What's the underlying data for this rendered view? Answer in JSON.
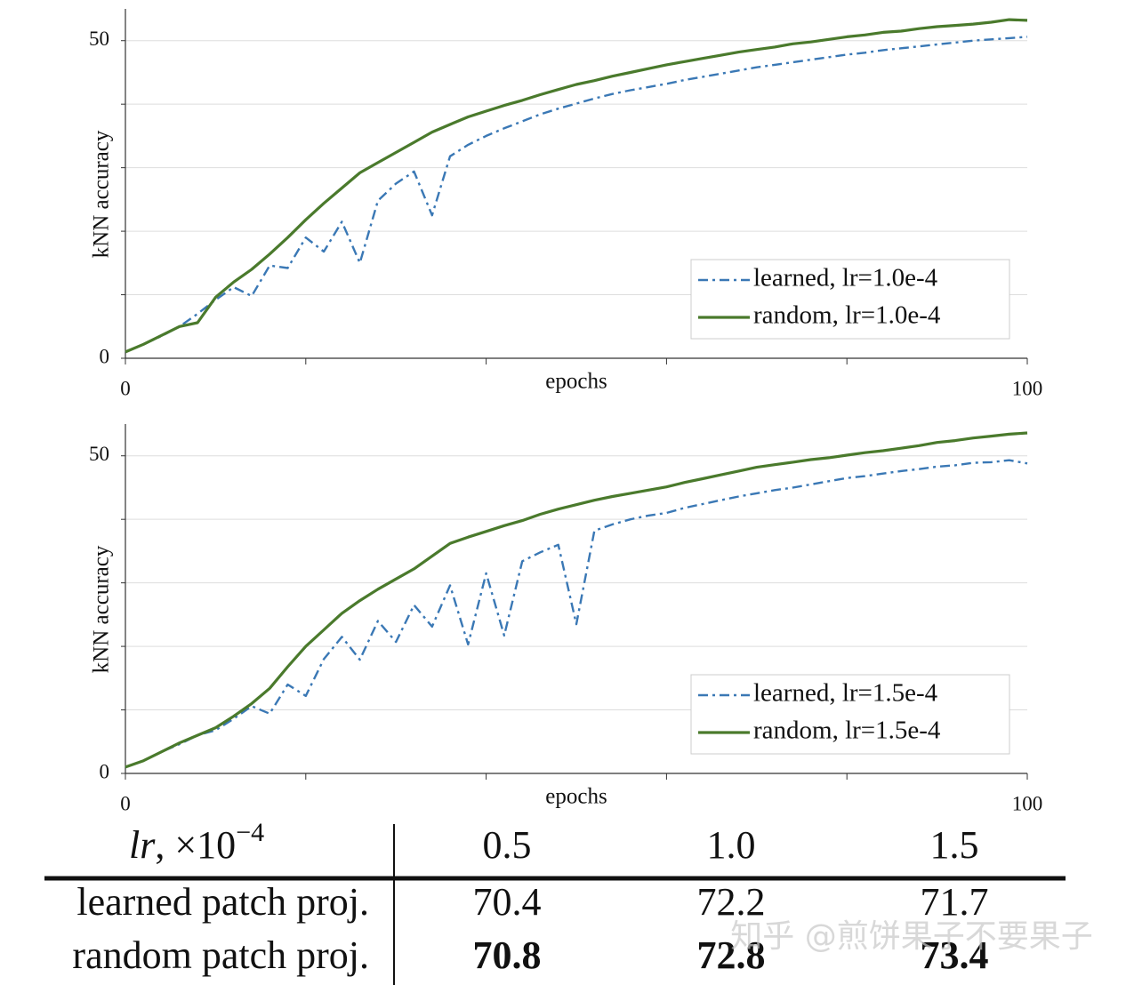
{
  "chart_data": [
    {
      "type": "line",
      "x_label": "epochs",
      "y_label": "kNN accuracy",
      "x": [
        0,
        2,
        4,
        6,
        8,
        10,
        12,
        14,
        16,
        18,
        20,
        22,
        24,
        26,
        28,
        30,
        32,
        34,
        36,
        38,
        40,
        42,
        44,
        46,
        48,
        50,
        52,
        54,
        56,
        58,
        60,
        62,
        64,
        66,
        68,
        70,
        72,
        74,
        76,
        78,
        80,
        82,
        84,
        86,
        88,
        90,
        92,
        94,
        96,
        98,
        100
      ],
      "xlim": [
        0,
        100
      ],
      "xticks": [
        0,
        100
      ],
      "minor_xticks": [
        20,
        40,
        60,
        80
      ],
      "ylim": [
        0,
        55
      ],
      "yticks": [
        0,
        50
      ],
      "minor_yticks": [
        10,
        20,
        30,
        40
      ],
      "grid": true,
      "legend": "lower right",
      "series": [
        {
          "name": "learned, lr=1.0e-4",
          "color": "#3a78b5",
          "style": "dashdot",
          "values": [
            1.0,
            2.2,
            3.5,
            5.0,
            7.0,
            9.2,
            11.2,
            9.8,
            14.6,
            14.2,
            19.0,
            16.8,
            21.5,
            15.0,
            24.8,
            27.5,
            29.4,
            22.5,
            31.8,
            33.6,
            35.0,
            36.2,
            37.3,
            38.4,
            39.3,
            40.1,
            40.9,
            41.6,
            42.2,
            42.7,
            43.2,
            43.8,
            44.3,
            44.8,
            45.3,
            45.8,
            46.2,
            46.6,
            47.0,
            47.4,
            47.8,
            48.1,
            48.5,
            48.8,
            49.1,
            49.4,
            49.7,
            50.0,
            50.2,
            50.4,
            50.6
          ]
        },
        {
          "name": "random, lr=1.0e-4",
          "color": "#4a7a2c",
          "style": "solid",
          "values": [
            1.0,
            2.2,
            3.6,
            5.0,
            5.6,
            9.6,
            12.0,
            14.0,
            16.4,
            19.0,
            21.8,
            24.4,
            26.8,
            29.2,
            30.8,
            32.4,
            34.0,
            35.6,
            36.8,
            38.0,
            38.9,
            39.8,
            40.6,
            41.5,
            42.3,
            43.1,
            43.7,
            44.4,
            45.0,
            45.6,
            46.2,
            46.7,
            47.2,
            47.7,
            48.2,
            48.6,
            49.0,
            49.5,
            49.8,
            50.2,
            50.6,
            50.9,
            51.3,
            51.5,
            51.9,
            52.2,
            52.4,
            52.6,
            52.9,
            53.3,
            53.2
          ]
        }
      ]
    },
    {
      "type": "line",
      "x_label": "epochs",
      "y_label": "kNN accuracy",
      "x": [
        0,
        2,
        4,
        6,
        8,
        10,
        12,
        14,
        16,
        18,
        20,
        22,
        24,
        26,
        28,
        30,
        32,
        34,
        36,
        38,
        40,
        42,
        44,
        46,
        48,
        50,
        52,
        54,
        56,
        58,
        60,
        62,
        64,
        66,
        68,
        70,
        72,
        74,
        76,
        78,
        80,
        82,
        84,
        86,
        88,
        90,
        92,
        94,
        96,
        98,
        100
      ],
      "xlim": [
        0,
        100
      ],
      "xticks": [
        0,
        100
      ],
      "minor_xticks": [
        20,
        40,
        60,
        80
      ],
      "ylim": [
        0,
        55
      ],
      "yticks": [
        0,
        50
      ],
      "minor_yticks": [
        10,
        20,
        30,
        40
      ],
      "grid": true,
      "legend": "lower right",
      "series": [
        {
          "name": "learned, lr=1.5e-4",
          "color": "#3a78b5",
          "style": "dashdot",
          "values": [
            1.0,
            2.0,
            3.4,
            4.6,
            6.0,
            6.8,
            8.6,
            10.6,
            9.4,
            14.0,
            12.2,
            18.0,
            21.5,
            17.9,
            24.0,
            20.7,
            26.5,
            23.1,
            29.6,
            20.3,
            31.5,
            21.7,
            33.4,
            34.8,
            36.0,
            23.5,
            38.2,
            39.2,
            40.0,
            40.6,
            41.0,
            41.8,
            42.4,
            43.0,
            43.6,
            44.1,
            44.6,
            45.0,
            45.5,
            46.0,
            46.5,
            46.8,
            47.2,
            47.6,
            47.9,
            48.3,
            48.5,
            48.9,
            49.0,
            49.3,
            48.8
          ]
        },
        {
          "name": "random, lr=1.5e-4",
          "color": "#4a7a2c",
          "style": "solid",
          "values": [
            1.0,
            2.0,
            3.4,
            4.8,
            6.0,
            7.2,
            9.0,
            11.0,
            13.4,
            16.8,
            20.0,
            22.6,
            25.2,
            27.2,
            29.0,
            30.6,
            32.2,
            34.2,
            36.2,
            37.2,
            38.1,
            39.0,
            39.8,
            40.8,
            41.6,
            42.3,
            43.0,
            43.6,
            44.1,
            44.6,
            45.1,
            45.8,
            46.4,
            47.0,
            47.6,
            48.2,
            48.6,
            49.0,
            49.4,
            49.7,
            50.1,
            50.5,
            50.8,
            51.2,
            51.6,
            52.1,
            52.4,
            52.8,
            53.1,
            53.4,
            53.6
          ]
        }
      ]
    }
  ],
  "table": {
    "header_label": {
      "var": "lr",
      "text": ", ×10",
      "exp": "−4"
    },
    "columns": [
      "0.5",
      "1.0",
      "1.5"
    ],
    "rows": [
      {
        "label": "learned patch proj.",
        "cells": [
          "70.4",
          "72.2",
          "71.7"
        ],
        "bold": false
      },
      {
        "label": "random patch proj.",
        "cells": [
          "70.8",
          "72.8",
          "73.4"
        ],
        "bold": true
      }
    ]
  },
  "watermark": "知乎 @煎饼果子不要果子"
}
